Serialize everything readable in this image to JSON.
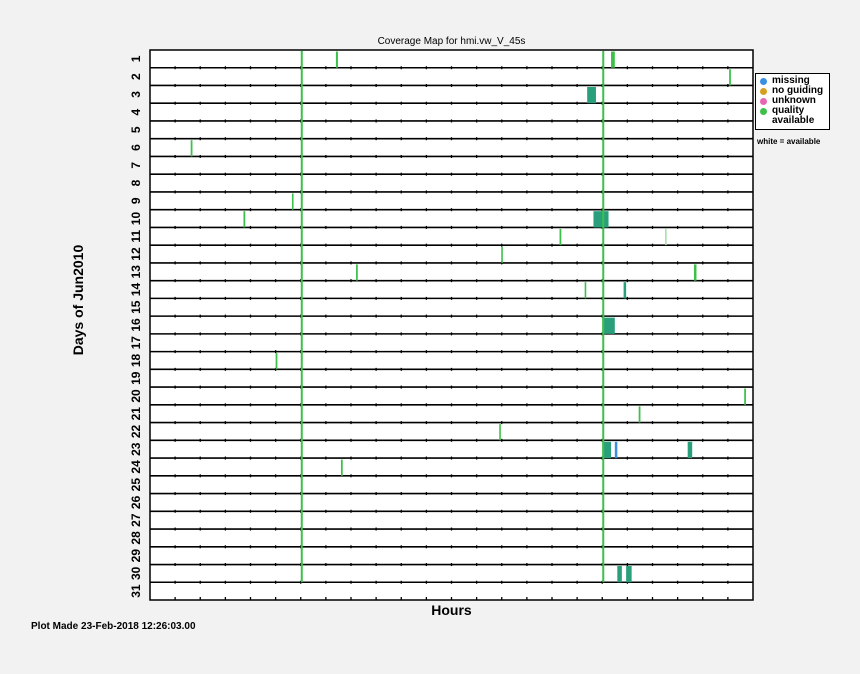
{
  "chart_data": {
    "type": "coverage-map",
    "title": "Coverage Map for hmi.vw_V_45s",
    "xlabel": "Hours",
    "ylabel": "Days of Jun2010",
    "days": [
      "1",
      "2",
      "3",
      "4",
      "5",
      "6",
      "7",
      "8",
      "9",
      "10",
      "11",
      "12",
      "13",
      "14",
      "15",
      "16",
      "17",
      "18",
      "19",
      "20",
      "21",
      "22",
      "23",
      "24",
      "25",
      "26",
      "27",
      "28",
      "29",
      "30",
      "31"
    ],
    "xlim": [
      0,
      24
    ],
    "background": "#f2f2f2",
    "legend": {
      "placement": "right",
      "items": [
        {
          "label": "missing",
          "color": "#3a8fe0"
        },
        {
          "label": "no guiding",
          "color": "#d4a020"
        },
        {
          "label": "unknown",
          "color": "#e864b4"
        },
        {
          "label": "quality available",
          "color": "#3cc04a"
        }
      ],
      "note": "white = available"
    },
    "colors": {
      "quality": "#3cc04a",
      "missing": "#3a8fe0",
      "mixed": "#2a9f7c",
      "light": "#a8e0a8"
    },
    "day_marks": [
      {
        "day": 1,
        "hour": 7.4,
        "width": 0.08,
        "color": "#3cc04a"
      },
      {
        "day": 1,
        "hour": 18.35,
        "width": 0.15,
        "color": "#3cc04a"
      },
      {
        "day": 2,
        "hour": 23.05,
        "width": 0.07,
        "color": "#3cc04a"
      },
      {
        "day": 3,
        "hour": 17.4,
        "width": 0.35,
        "color": "#2a9f7c"
      },
      {
        "day": 6,
        "hour": 1.62,
        "width": 0.07,
        "color": "#3cc04a"
      },
      {
        "day": 9,
        "hour": 5.65,
        "width": 0.06,
        "color": "#3cc04a"
      },
      {
        "day": 10,
        "hour": 3.72,
        "width": 0.07,
        "color": "#3cc04a"
      },
      {
        "day": 10,
        "hour": 17.65,
        "width": 0.6,
        "color": "#2a9f7c"
      },
      {
        "day": 11,
        "hour": 16.3,
        "width": 0.07,
        "color": "#3cc04a"
      },
      {
        "day": 11,
        "hour": 20.5,
        "width": 0.05,
        "color": "#a8e0a8"
      },
      {
        "day": 12,
        "hour": 13.98,
        "width": 0.06,
        "color": "#3cc04a"
      },
      {
        "day": 13,
        "hour": 8.2,
        "width": 0.07,
        "color": "#3cc04a"
      },
      {
        "day": 13,
        "hour": 21.65,
        "width": 0.1,
        "color": "#3cc04a"
      },
      {
        "day": 14,
        "hour": 17.3,
        "width": 0.06,
        "color": "#3cc04a"
      },
      {
        "day": 14,
        "hour": 18.85,
        "width": 0.1,
        "color": "#2a9f7c"
      },
      {
        "day": 16,
        "hour": 18.0,
        "width": 0.5,
        "color": "#2a9f7c"
      },
      {
        "day": 18,
        "hour": 5.0,
        "width": 0.07,
        "color": "#3cc04a"
      },
      {
        "day": 20,
        "hour": 23.65,
        "width": 0.07,
        "color": "#3cc04a"
      },
      {
        "day": 21,
        "hour": 19.45,
        "width": 0.07,
        "color": "#3cc04a"
      },
      {
        "day": 22,
        "hour": 13.9,
        "width": 0.06,
        "color": "#3cc04a"
      },
      {
        "day": 23,
        "hour": 18.0,
        "width": 0.35,
        "color": "#2a9f7c"
      },
      {
        "day": 23,
        "hour": 18.5,
        "width": 0.1,
        "color": "#3a8fe0"
      },
      {
        "day": 23,
        "hour": 21.4,
        "width": 0.18,
        "color": "#2a9f7c"
      },
      {
        "day": 24,
        "hour": 7.6,
        "width": 0.07,
        "color": "#3cc04a"
      },
      {
        "day": 30,
        "hour": 18.6,
        "width": 0.18,
        "color": "#2a9f7c"
      },
      {
        "day": 30,
        "hour": 18.95,
        "width": 0.22,
        "color": "#2a9f7c"
      }
    ],
    "spans": [
      {
        "day_from": 1,
        "day_to": 30,
        "hour": 6.0,
        "width": 0.08,
        "color": "#3cc04a"
      },
      {
        "day_from": 1,
        "day_to": 30,
        "hour": 18.0,
        "width": 0.08,
        "color": "#3cc04a"
      }
    ]
  },
  "footer": "Plot Made 23-Feb-2018 12:26:03.00"
}
